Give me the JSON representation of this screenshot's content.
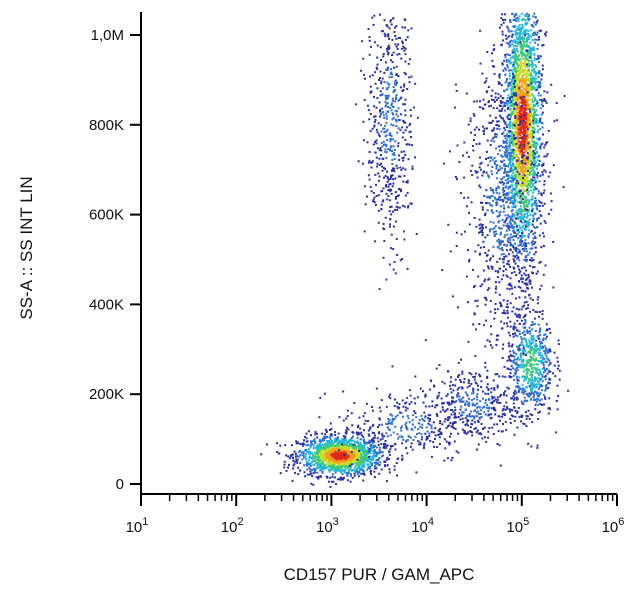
{
  "chart_data": {
    "type": "scatter",
    "title": "",
    "xlabel": "CD157 PUR / GAM_APC",
    "ylabel": "SS-A :: SS INT LIN",
    "xscale": "log",
    "xlim": [
      10,
      1000000
    ],
    "ylim": [
      0,
      1050000
    ],
    "x_ticks": [
      {
        "value": 10,
        "base": "10",
        "exp": "1"
      },
      {
        "value": 100,
        "base": "10",
        "exp": "2"
      },
      {
        "value": 1000,
        "base": "10",
        "exp": "3"
      },
      {
        "value": 10000,
        "base": "10",
        "exp": "4"
      },
      {
        "value": 100000,
        "base": "10",
        "exp": "5"
      },
      {
        "value": 1000000,
        "base": "10",
        "exp": "6"
      }
    ],
    "y_ticks": [
      {
        "value": 0,
        "label": "0"
      },
      {
        "value": 200000,
        "label": "200K"
      },
      {
        "value": 400000,
        "label": "400K"
      },
      {
        "value": 600000,
        "label": "600K"
      },
      {
        "value": 800000,
        "label": "800K"
      },
      {
        "value": 1000000,
        "label": "1,0M"
      }
    ],
    "grid": false,
    "legend": "none",
    "density_colors": [
      "#2a2fa0",
      "#2f6fd0",
      "#27b7d8",
      "#3fc87a",
      "#c8dc28",
      "#f0a018",
      "#e02818"
    ],
    "populations": [
      {
        "x_center": 1200,
        "y_center": 65000,
        "x_spread_log": 0.22,
        "y_spread": 22000,
        "count": 1500,
        "density": "high"
      },
      {
        "x_center": 6000,
        "y_center": 130000,
        "x_spread_log": 0.35,
        "y_spread": 40000,
        "count": 300,
        "density": "low"
      },
      {
        "x_center": 30000,
        "y_center": 180000,
        "x_spread_log": 0.25,
        "y_spread": 40000,
        "count": 350,
        "density": "low"
      },
      {
        "x_center": 120000,
        "y_center": 270000,
        "x_spread_log": 0.12,
        "y_spread": 60000,
        "count": 600,
        "density": "medium"
      },
      {
        "x_center": 100000,
        "y_center": 800000,
        "x_spread_log": 0.1,
        "y_spread": 150000,
        "count": 2500,
        "density": "high"
      },
      {
        "x_center": 60000,
        "y_center": 650000,
        "x_spread_log": 0.2,
        "y_spread": 180000,
        "count": 800,
        "density": "low"
      },
      {
        "x_center": 4000,
        "y_center": 820000,
        "x_spread_log": 0.12,
        "y_spread": 150000,
        "count": 550,
        "density": "low"
      }
    ]
  }
}
